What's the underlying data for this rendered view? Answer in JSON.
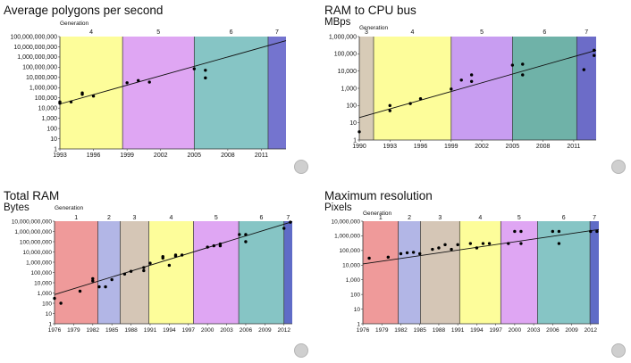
{
  "chart_data": [
    {
      "type": "scatter",
      "title": "Average polygons per second",
      "subtitle": "",
      "generation_label": "Generation",
      "scale": "log",
      "ylim": [
        1,
        100000000000
      ],
      "yticks": [
        1,
        10,
        100,
        1000,
        10000,
        100000,
        1000000,
        10000000,
        100000000,
        1000000000,
        10000000000,
        100000000000
      ],
      "ytick_labels": [
        "1",
        "10",
        "100",
        "1,000",
        "10,000",
        "100,000",
        "1,000,000",
        "10,000,000",
        "100,000,000",
        "1,000,000,000",
        "10,000,000,000",
        "100,000,000,000"
      ],
      "xlim": [
        1993,
        2013.2
      ],
      "xticks": [
        1993,
        1996,
        1999,
        2002,
        2005,
        2008,
        2011
      ],
      "generations": [
        {
          "label": "4",
          "start": 1993,
          "end": 1998.6,
          "color": "#fdfd9a"
        },
        {
          "label": "5",
          "start": 1998.6,
          "end": 2005,
          "color": "#dfa6f3"
        },
        {
          "label": "6",
          "start": 2005,
          "end": 2011.6,
          "color": "#86c5c5"
        },
        {
          "label": "7",
          "start": 2011.6,
          "end": 2013.2,
          "color": "#7474cf"
        }
      ],
      "points": [
        [
          1993,
          30000
        ],
        [
          1993,
          40000
        ],
        [
          1994,
          40000
        ],
        [
          1995,
          300000
        ],
        [
          1995,
          220000
        ],
        [
          1996,
          150000
        ],
        [
          1999,
          3000000
        ],
        [
          2000,
          5000000
        ],
        [
          2001,
          3500000
        ],
        [
          2005,
          70000000
        ],
        [
          2006,
          50000000
        ],
        [
          2006,
          9000000
        ]
      ],
      "trend": [
        [
          1993,
          25000
        ],
        [
          2013.2,
          40000000000
        ]
      ]
    },
    {
      "type": "scatter",
      "title": "RAM to CPU bus",
      "subtitle": "MBps",
      "generation_label": "Generation",
      "scale": "log",
      "ylim": [
        1,
        1000000
      ],
      "yticks": [
        1,
        10,
        100,
        1000,
        10000,
        100000,
        1000000
      ],
      "ytick_labels": [
        "1",
        "10",
        "100",
        "1,000",
        "10,000",
        "100,000",
        "1,000,000"
      ],
      "xlim": [
        1990,
        2013.2
      ],
      "xticks": [
        1990,
        1993,
        1996,
        1999,
        2002,
        2005,
        2008,
        2011
      ],
      "generations": [
        {
          "label": "3",
          "start": 1990,
          "end": 1991.4,
          "color": "#d7cbb7"
        },
        {
          "label": "4",
          "start": 1991.4,
          "end": 1999,
          "color": "#fdfd9a"
        },
        {
          "label": "5",
          "start": 1999,
          "end": 2005,
          "color": "#c89df1"
        },
        {
          "label": "6",
          "start": 2005,
          "end": 2011.3,
          "color": "#6fb2a8"
        },
        {
          "label": "7",
          "start": 2011.3,
          "end": 2013.2,
          "color": "#6c6cc8"
        }
      ],
      "points": [
        [
          1990,
          3
        ],
        [
          1993,
          50
        ],
        [
          1993,
          100
        ],
        [
          1995,
          130
        ],
        [
          1996,
          250
        ],
        [
          1999,
          900
        ],
        [
          2000,
          3000
        ],
        [
          2001,
          6000
        ],
        [
          2001,
          2500
        ],
        [
          2005,
          22000
        ],
        [
          2006,
          25000
        ],
        [
          2006,
          6000
        ],
        [
          2012,
          12000
        ],
        [
          2013,
          160000
        ],
        [
          2013,
          80000
        ]
      ],
      "trend": [
        [
          1990,
          20
        ],
        [
          2013.2,
          160000
        ]
      ]
    },
    {
      "type": "scatter",
      "title": "Total RAM",
      "subtitle": "Bytes",
      "generation_label": "Generation",
      "scale": "log",
      "ylim": [
        1,
        10000000000
      ],
      "yticks": [
        1,
        10,
        100,
        1000,
        10000,
        100000,
        1000000,
        10000000,
        100000000,
        1000000000,
        10000000000
      ],
      "ytick_labels": [
        "1",
        "10",
        "100",
        "1,000",
        "10,000",
        "100,000",
        "1,000,000",
        "10,000,000",
        "100,000,000",
        "1,000,000,000",
        "10,000,000,000"
      ],
      "xlim": [
        1976,
        2013.3
      ],
      "xticks": [
        1976,
        1979,
        1982,
        1985,
        1988,
        1991,
        1994,
        1997,
        2000,
        2003,
        2006,
        2009,
        2012
      ],
      "xtick_labels": [
        "1976",
        "1979",
        "1982",
        "1985",
        "1988",
        "1991",
        "1994",
        "1997",
        "2000",
        "2003",
        "2006",
        "2009",
        "2012"
      ],
      "generations": [
        {
          "label": "1",
          "start": 1976,
          "end": 1982.8,
          "color": "#ef9a9a"
        },
        {
          "label": "2",
          "start": 1982.8,
          "end": 1986.3,
          "color": "#b2b6e6"
        },
        {
          "label": "3",
          "start": 1986.3,
          "end": 1990.8,
          "color": "#d5c6b6"
        },
        {
          "label": "4",
          "start": 1990.8,
          "end": 1997.8,
          "color": "#fdfd9a"
        },
        {
          "label": "5",
          "start": 1997.8,
          "end": 2004.9,
          "color": "#dfa6f3"
        },
        {
          "label": "6",
          "start": 2004.9,
          "end": 2012,
          "color": "#86c5c5"
        },
        {
          "label": "7",
          "start": 2012,
          "end": 2013.3,
          "color": "#5f6cc7"
        }
      ],
      "points": [
        [
          1976,
          300
        ],
        [
          1977,
          100
        ],
        [
          1980,
          1500
        ],
        [
          1982,
          15000
        ],
        [
          1982,
          25000
        ],
        [
          1983,
          4000
        ],
        [
          1984,
          4000
        ],
        [
          1985,
          20000
        ],
        [
          1987,
          70000
        ],
        [
          1988,
          130000
        ],
        [
          1990,
          300000
        ],
        [
          1990,
          150000
        ],
        [
          1991,
          800000
        ],
        [
          1993,
          2500000
        ],
        [
          1993,
          3500000
        ],
        [
          1994,
          500000
        ],
        [
          1995,
          4000000
        ],
        [
          1995,
          5000000
        ],
        [
          1996,
          5000000
        ],
        [
          2000,
          30000000
        ],
        [
          2001,
          40000000
        ],
        [
          2002,
          60000000
        ],
        [
          2002,
          40000000
        ],
        [
          2005,
          500000000
        ],
        [
          2006,
          500000000
        ],
        [
          2006,
          100000000
        ],
        [
          2012,
          2000000000
        ],
        [
          2013,
          8000000000
        ]
      ],
      "trend": [
        [
          1976,
          700
        ],
        [
          2013.3,
          9000000000
        ]
      ]
    },
    {
      "type": "scatter",
      "title": "Maximum resolution",
      "subtitle": "Pixels",
      "generation_label": "Generation",
      "scale": "log",
      "ylim": [
        1,
        10000000
      ],
      "yticks": [
        1,
        10,
        100,
        1000,
        10000,
        100000,
        1000000,
        10000000
      ],
      "ytick_labels": [
        "1",
        "10",
        "100",
        "1,000",
        "10,000",
        "100,000",
        "1,000,000",
        "10,000,000"
      ],
      "xlim": [
        1976,
        2013.3
      ],
      "xticks": [
        1976,
        1979,
        1982,
        1985,
        1988,
        1991,
        1994,
        1997,
        2000,
        2003,
        2006,
        2009,
        2012
      ],
      "xtick_labels": [
        "1976",
        "1979",
        "1982",
        "1985",
        "1988",
        "1991",
        "1994",
        "1997",
        "2000",
        "2003",
        "2006",
        "2009",
        "2012"
      ],
      "generations": [
        {
          "label": "1",
          "start": 1976,
          "end": 1981.6,
          "color": "#ef9a9a"
        },
        {
          "label": "2",
          "start": 1981.6,
          "end": 1985.1,
          "color": "#b2b6e6"
        },
        {
          "label": "3",
          "start": 1985.1,
          "end": 1991.3,
          "color": "#d5c6b6"
        },
        {
          "label": "4",
          "start": 1991.3,
          "end": 1997.8,
          "color": "#fdfd9a"
        },
        {
          "label": "5",
          "start": 1997.8,
          "end": 2003.6,
          "color": "#dfa6f3"
        },
        {
          "label": "6",
          "start": 2003.6,
          "end": 2011.9,
          "color": "#86c5c5"
        },
        {
          "label": "7",
          "start": 2011.9,
          "end": 2013.3,
          "color": "#5f6cc7"
        }
      ],
      "points": [
        [
          1977,
          30000
        ],
        [
          1980,
          35000
        ],
        [
          1982,
          60000
        ],
        [
          1983,
          70000
        ],
        [
          1984,
          75000
        ],
        [
          1985,
          60000
        ],
        [
          1987,
          120000
        ],
        [
          1988,
          150000
        ],
        [
          1989,
          250000
        ],
        [
          1990,
          120000
        ],
        [
          1991,
          250000
        ],
        [
          1993,
          300000
        ],
        [
          1994,
          150000
        ],
        [
          1995,
          300000
        ],
        [
          1996,
          300000
        ],
        [
          1999,
          300000
        ],
        [
          2000,
          2000000
        ],
        [
          2001,
          2000000
        ],
        [
          2001,
          300000
        ],
        [
          2006,
          2000000
        ],
        [
          2007,
          2000000
        ],
        [
          2007,
          300000
        ],
        [
          2012,
          2000000
        ],
        [
          2013,
          2000000
        ]
      ],
      "trend": [
        [
          1976,
          12000
        ],
        [
          2013.3,
          2700000
        ]
      ]
    }
  ]
}
